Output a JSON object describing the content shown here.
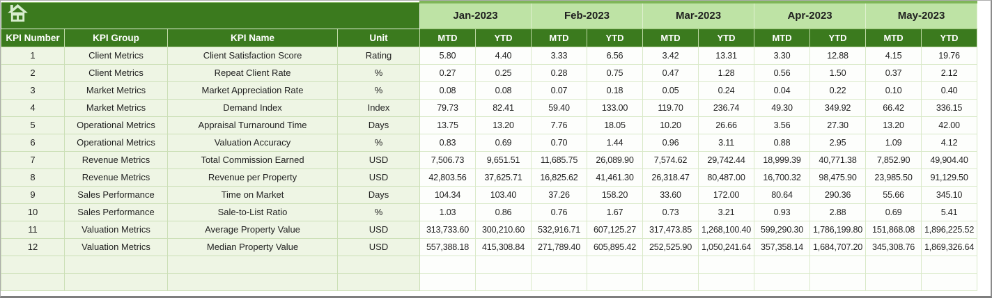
{
  "colors": {
    "header_green": "#3B7A1E",
    "month_band_green": "#BEE3A5",
    "month_top_strip": "#7FB659",
    "left_cell_bg": "#EEF5E4",
    "grid_line": "#D9E9C8",
    "header_text": "#FFFFFF",
    "body_text": "#1F1F1F"
  },
  "table": {
    "left_headers": [
      "KPI Number",
      "KPI Group",
      "KPI Name",
      "Unit"
    ],
    "months": [
      "Jan-2023",
      "Feb-2023",
      "Mar-2023",
      "Apr-2023",
      "May-2023"
    ],
    "period_labels": [
      "MTD",
      "YTD"
    ],
    "empty_row_count": 2,
    "rows": [
      {
        "number": "1",
        "group": "Client Metrics",
        "name": "Client Satisfaction Score",
        "unit": "Rating",
        "values": [
          "5.80",
          "4.40",
          "3.33",
          "6.56",
          "3.42",
          "13.31",
          "3.30",
          "12.88",
          "4.15",
          "19.76"
        ]
      },
      {
        "number": "2",
        "group": "Client Metrics",
        "name": "Repeat Client Rate",
        "unit": "%",
        "values": [
          "0.27",
          "0.25",
          "0.28",
          "0.75",
          "0.47",
          "1.28",
          "0.56",
          "1.50",
          "0.37",
          "2.12"
        ]
      },
      {
        "number": "3",
        "group": "Market Metrics",
        "name": "Market Appreciation Rate",
        "unit": "%",
        "values": [
          "0.08",
          "0.08",
          "0.07",
          "0.18",
          "0.05",
          "0.24",
          "0.04",
          "0.22",
          "0.10",
          "0.40"
        ]
      },
      {
        "number": "4",
        "group": "Market Metrics",
        "name": "Demand Index",
        "unit": "Index",
        "values": [
          "79.73",
          "82.41",
          "59.40",
          "133.00",
          "119.70",
          "236.74",
          "49.30",
          "349.92",
          "66.42",
          "336.15"
        ]
      },
      {
        "number": "5",
        "group": "Operational Metrics",
        "name": "Appraisal Turnaround Time",
        "unit": "Days",
        "values": [
          "13.75",
          "13.20",
          "7.76",
          "18.05",
          "10.20",
          "26.66",
          "3.56",
          "27.30",
          "13.20",
          "42.00"
        ]
      },
      {
        "number": "6",
        "group": "Operational Metrics",
        "name": "Valuation Accuracy",
        "unit": "%",
        "values": [
          "0.83",
          "0.69",
          "0.70",
          "1.44",
          "0.96",
          "3.11",
          "0.88",
          "2.95",
          "1.09",
          "4.12"
        ]
      },
      {
        "number": "7",
        "group": "Revenue Metrics",
        "name": "Total Commission Earned",
        "unit": "USD",
        "values": [
          "7,506.73",
          "9,651.51",
          "11,685.75",
          "26,089.90",
          "7,574.62",
          "29,742.44",
          "18,999.39",
          "40,771.38",
          "7,852.90",
          "49,904.40"
        ]
      },
      {
        "number": "8",
        "group": "Revenue Metrics",
        "name": "Revenue per Property",
        "unit": "USD",
        "values": [
          "42,803.56",
          "37,625.71",
          "16,825.62",
          "41,461.30",
          "26,318.47",
          "80,487.00",
          "16,700.32",
          "98,475.90",
          "23,985.50",
          "91,129.50"
        ]
      },
      {
        "number": "9",
        "group": "Sales Performance",
        "name": "Time on Market",
        "unit": "Days",
        "values": [
          "104.34",
          "103.40",
          "37.26",
          "158.20",
          "33.60",
          "172.00",
          "80.64",
          "290.36",
          "55.66",
          "345.10"
        ]
      },
      {
        "number": "10",
        "group": "Sales Performance",
        "name": "Sale-to-List Ratio",
        "unit": "%",
        "values": [
          "1.03",
          "0.86",
          "0.76",
          "1.67",
          "0.73",
          "3.21",
          "0.93",
          "2.88",
          "0.69",
          "5.41"
        ]
      },
      {
        "number": "11",
        "group": "Valuation Metrics",
        "name": "Average Property Value",
        "unit": "USD",
        "values": [
          "313,733.60",
          "300,210.60",
          "532,916.71",
          "607,125.27",
          "317,473.85",
          "1,268,100.40",
          "599,290.30",
          "1,786,199.80",
          "151,868.08",
          "1,896,225.52"
        ]
      },
      {
        "number": "12",
        "group": "Valuation Metrics",
        "name": "Median Property Value",
        "unit": "USD",
        "values": [
          "557,388.18",
          "415,308.84",
          "271,789.40",
          "605,895.42",
          "252,525.90",
          "1,050,241.64",
          "357,358.14",
          "1,684,707.20",
          "345,308.76",
          "1,869,326.64"
        ]
      }
    ]
  }
}
